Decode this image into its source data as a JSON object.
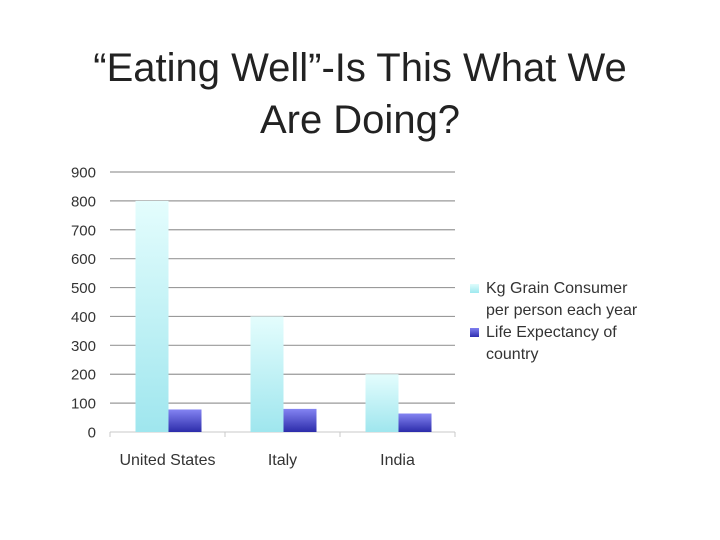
{
  "slide": {
    "title_line1": "“Eating Well”-Is This What We",
    "title_line2": "Are Doing?"
  },
  "colors": {
    "series0_top": "#e4fdfd",
    "series0_bottom": "#9fe6ee",
    "series1_top": "#8484f2",
    "series1_bottom": "#2c2caa",
    "grid": "#9a9a9a",
    "axis_text": "#333333"
  },
  "chart_data": {
    "type": "bar",
    "title": "",
    "xlabel": "",
    "ylabel": "",
    "categories": [
      "United States",
      "Italy",
      "India"
    ],
    "series": [
      {
        "name": "Kg Grain Consumer per person each year",
        "values": [
          800,
          400,
          200
        ]
      },
      {
        "name": "Life Expectancy of country",
        "values": [
          78,
          80,
          64
        ]
      }
    ],
    "ylim": [
      0,
      900
    ],
    "yticks": [
      0,
      100,
      200,
      300,
      400,
      500,
      600,
      700,
      800,
      900
    ],
    "grid": true,
    "legend": {
      "position": "right",
      "lines": [
        [
          "Kg Grain Consumer",
          "per person each year"
        ],
        [
          "Life Expectancy of",
          "country"
        ]
      ]
    }
  }
}
